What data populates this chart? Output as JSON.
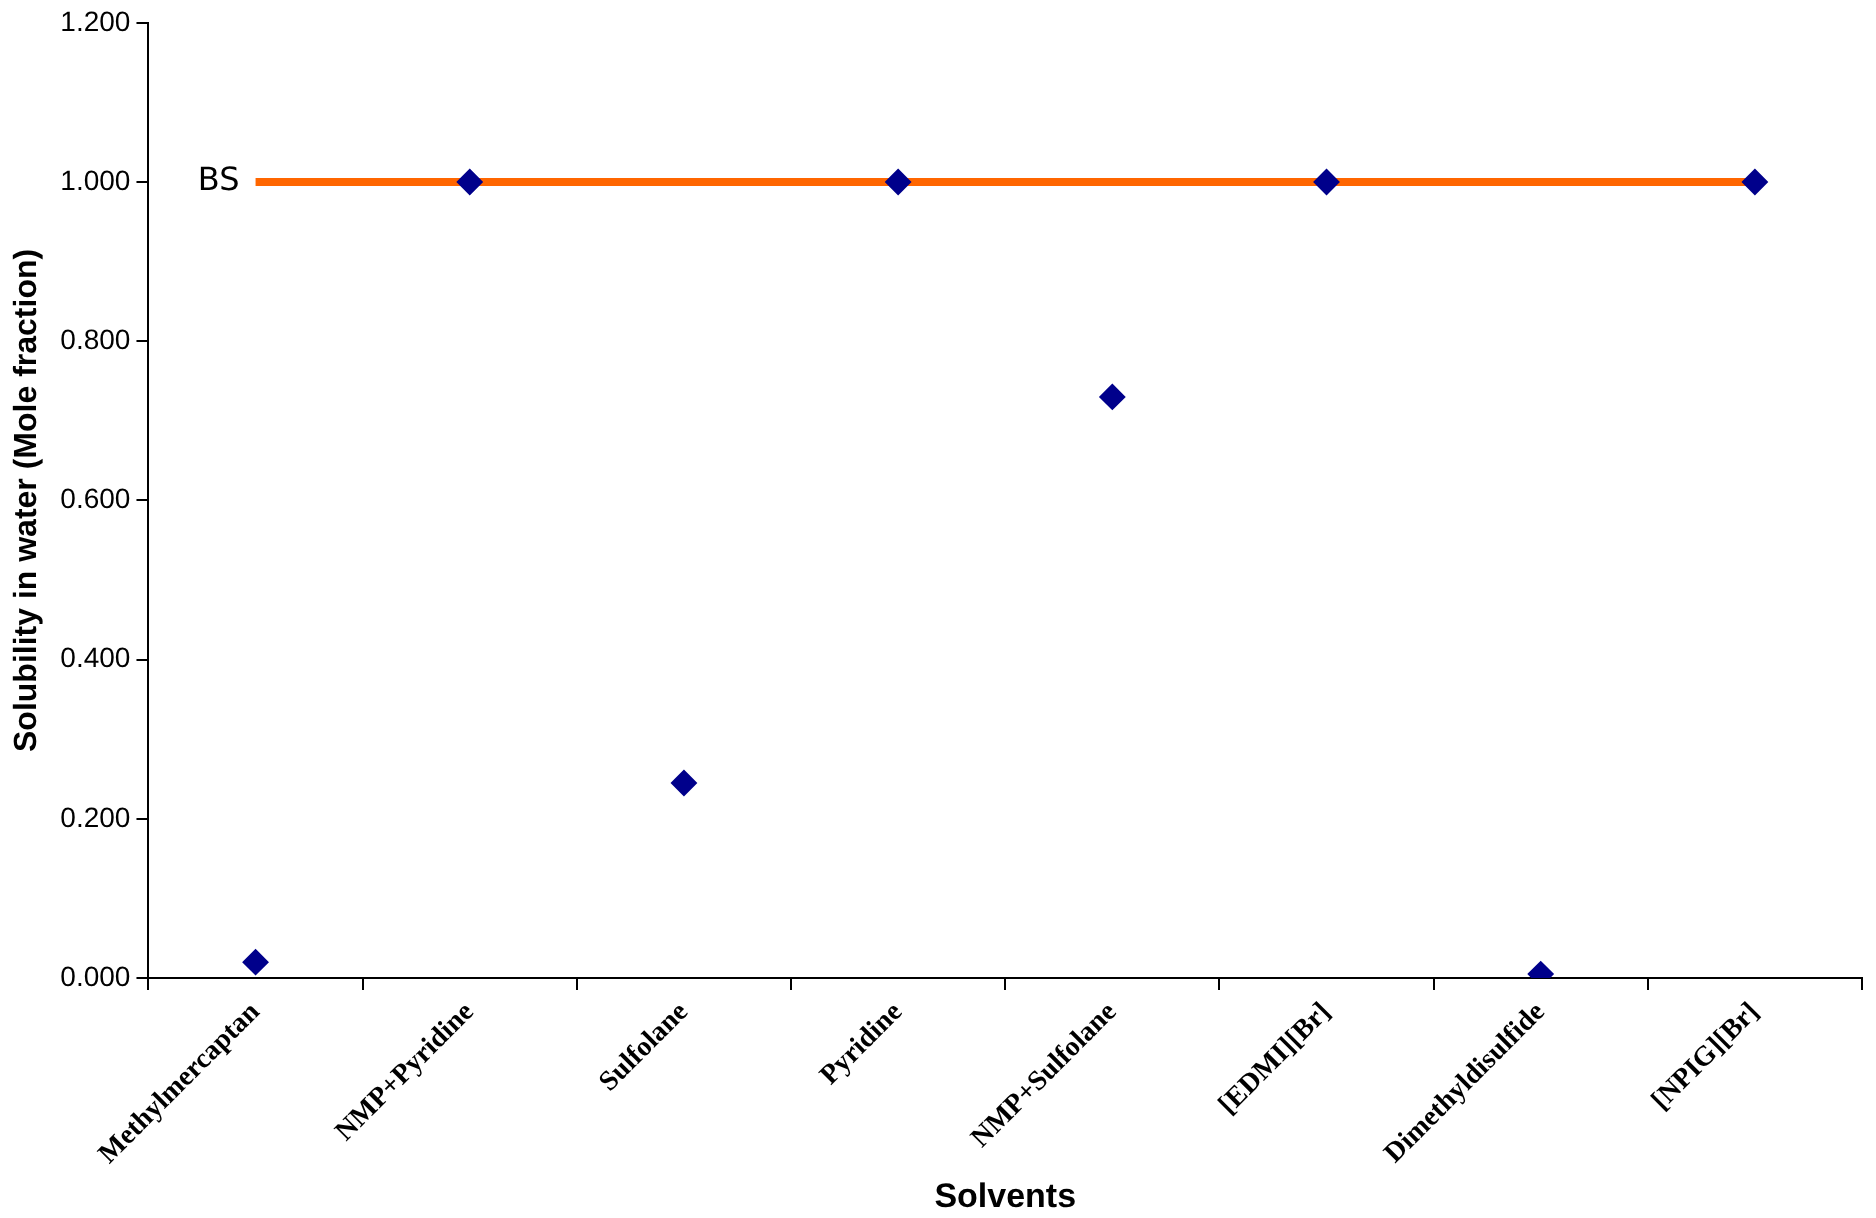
{
  "chart_data": {
    "type": "scatter",
    "xlabel": "Solvents",
    "ylabel": "Solubility in water (Mole fraction)",
    "categories": [
      "Methylmercaptan",
      "NMP+Pyridine",
      "Sulfolane",
      "Pyridine",
      "NMP+Sulfolane",
      "[EDMI][Br]",
      "Dimethyldisulfide",
      "[NPIG][Br]"
    ],
    "series": [
      {
        "type": "line",
        "name": "BS",
        "color": "#ff6600",
        "marker": "none",
        "values": [
          1,
          1,
          1,
          1,
          1,
          1,
          1,
          1
        ]
      },
      {
        "color": "#00008b",
        "marker": "diamond",
        "values": [
          0.02,
          1.0,
          0.245,
          1.0,
          0.73,
          1.0,
          0.005,
          1.0
        ]
      }
    ],
    "ylim": [
      0,
      1.2
    ],
    "yticks": [
      {
        "value": 0,
        "label": "0.000"
      },
      {
        "value": 0.2,
        "label": "0.200"
      },
      {
        "value": 0.4,
        "label": "0.400"
      },
      {
        "value": 0.6,
        "label": "0.600"
      },
      {
        "value": 0.8,
        "label": "0.800"
      },
      {
        "value": 1.0,
        "label": "1.000"
      },
      {
        "value": 1.2,
        "label": "1.200"
      }
    ],
    "grid": false,
    "legend": false
  }
}
